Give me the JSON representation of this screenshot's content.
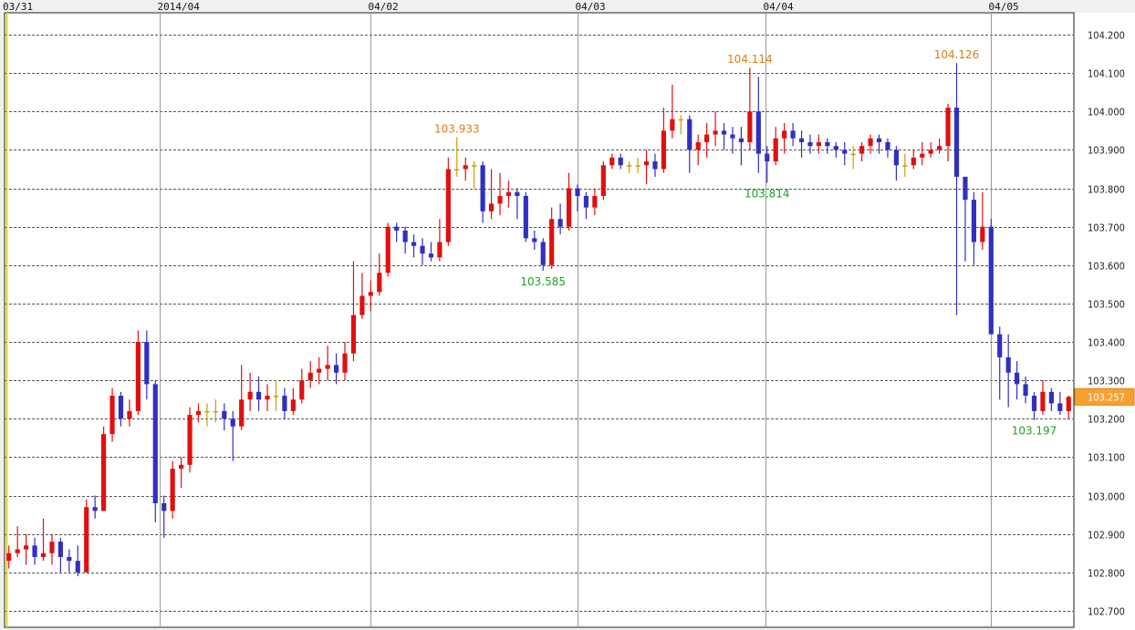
{
  "chart_data": {
    "type": "candlestick",
    "title": "",
    "xlabel": "",
    "ylabel": "",
    "ylim": [
      102.65,
      104.26
    ],
    "y_ticks": [
      "102.700",
      "102.800",
      "102.900",
      "103.000",
      "103.100",
      "103.200",
      "103.300",
      "103.400",
      "103.500",
      "103.600",
      "103.700",
      "103.800",
      "103.900",
      "104.000",
      "104.100",
      "104.200"
    ],
    "grid": true,
    "colors": {
      "up": "#e01010",
      "down": "#3030c0",
      "flat": "#c8a000",
      "high_label": "#e07a10",
      "low_label": "#22a022",
      "current_price_bg": "#f7a030",
      "grid": "#555555",
      "day_line": "#999999"
    },
    "date_markers": [
      {
        "label": "03/31",
        "at_index": 0
      },
      {
        "label": "2014/04",
        "at_index": 18
      },
      {
        "label": "04/02",
        "at_index": 42.5
      },
      {
        "label": "04/03",
        "at_index": 66.5
      },
      {
        "label": "04/04",
        "at_index": 88.3
      },
      {
        "label": "04/05",
        "at_index": 114.5
      }
    ],
    "ohlc": [
      [
        102.83,
        102.87,
        102.81,
        102.85
      ],
      [
        102.85,
        102.92,
        102.84,
        102.86
      ],
      [
        102.86,
        102.9,
        102.82,
        102.87
      ],
      [
        102.87,
        102.89,
        102.82,
        102.84
      ],
      [
        102.84,
        102.94,
        102.83,
        102.85
      ],
      [
        102.85,
        102.9,
        102.82,
        102.88
      ],
      [
        102.88,
        102.89,
        102.8,
        102.84
      ],
      [
        102.84,
        102.86,
        102.8,
        102.83
      ],
      [
        102.83,
        102.87,
        102.79,
        102.8
      ],
      [
        102.8,
        102.99,
        102.8,
        102.97
      ],
      [
        102.97,
        103.0,
        102.94,
        102.96
      ],
      [
        102.96,
        103.18,
        102.96,
        103.16
      ],
      [
        103.16,
        103.28,
        103.14,
        103.26
      ],
      [
        103.26,
        103.27,
        103.18,
        103.2
      ],
      [
        103.2,
        103.25,
        103.18,
        103.22
      ],
      [
        103.22,
        103.43,
        103.21,
        103.4
      ],
      [
        103.4,
        103.43,
        103.25,
        103.29
      ],
      [
        103.29,
        103.3,
        102.93,
        102.98
      ],
      [
        102.98,
        103.0,
        102.89,
        102.96
      ],
      [
        102.96,
        103.09,
        102.94,
        103.07
      ],
      [
        103.07,
        103.1,
        103.02,
        103.08
      ],
      [
        103.08,
        103.23,
        103.06,
        103.21
      ],
      [
        103.21,
        103.24,
        103.19,
        103.22
      ],
      [
        103.22,
        103.24,
        103.18,
        103.22
      ],
      [
        103.22,
        103.25,
        103.19,
        103.22
      ],
      [
        103.22,
        103.24,
        103.17,
        103.2
      ],
      [
        103.2,
        103.22,
        103.09,
        103.18
      ],
      [
        103.18,
        103.34,
        103.17,
        103.25
      ],
      [
        103.25,
        103.32,
        103.22,
        103.27
      ],
      [
        103.27,
        103.31,
        103.22,
        103.25
      ],
      [
        103.25,
        103.29,
        103.22,
        103.26
      ],
      [
        103.26,
        103.3,
        103.22,
        103.26
      ],
      [
        103.26,
        103.28,
        103.2,
        103.22
      ],
      [
        103.22,
        103.28,
        103.21,
        103.25
      ],
      [
        103.25,
        103.33,
        103.24,
        103.3
      ],
      [
        103.3,
        103.35,
        103.28,
        103.32
      ],
      [
        103.32,
        103.36,
        103.29,
        103.33
      ],
      [
        103.33,
        103.39,
        103.3,
        103.34
      ],
      [
        103.34,
        103.37,
        103.29,
        103.32
      ],
      [
        103.32,
        103.4,
        103.3,
        103.37
      ],
      [
        103.37,
        103.61,
        103.35,
        103.47
      ],
      [
        103.47,
        103.58,
        103.46,
        103.52
      ],
      [
        103.52,
        103.56,
        103.48,
        103.53
      ],
      [
        103.53,
        103.63,
        103.52,
        103.58
      ],
      [
        103.58,
        103.71,
        103.57,
        103.7
      ],
      [
        103.7,
        103.71,
        103.66,
        103.69
      ],
      [
        103.69,
        103.7,
        103.63,
        103.66
      ],
      [
        103.66,
        103.68,
        103.62,
        103.65
      ],
      [
        103.65,
        103.67,
        103.6,
        103.63
      ],
      [
        103.63,
        103.66,
        103.61,
        103.62
      ],
      [
        103.62,
        103.72,
        103.61,
        103.66
      ],
      [
        103.66,
        103.88,
        103.65,
        103.85
      ],
      [
        103.85,
        103.933,
        103.83,
        103.85
      ],
      [
        103.85,
        103.88,
        103.82,
        103.86
      ],
      [
        103.86,
        103.87,
        103.8,
        103.86
      ],
      [
        103.86,
        103.87,
        103.71,
        103.74
      ],
      [
        103.74,
        103.85,
        103.72,
        103.76
      ],
      [
        103.76,
        103.84,
        103.73,
        103.78
      ],
      [
        103.78,
        103.82,
        103.75,
        103.79
      ],
      [
        103.79,
        103.8,
        103.72,
        103.78
      ],
      [
        103.78,
        103.79,
        103.66,
        103.67
      ],
      [
        103.67,
        103.69,
        103.64,
        103.66
      ],
      [
        103.66,
        103.67,
        103.585,
        103.6
      ],
      [
        103.6,
        103.75,
        103.59,
        103.72
      ],
      [
        103.72,
        103.76,
        103.68,
        103.7
      ],
      [
        103.7,
        103.84,
        103.69,
        103.8
      ],
      [
        103.8,
        103.81,
        103.74,
        103.78
      ],
      [
        103.78,
        103.79,
        103.72,
        103.75
      ],
      [
        103.75,
        103.8,
        103.73,
        103.78
      ],
      [
        103.78,
        103.87,
        103.77,
        103.86
      ],
      [
        103.86,
        103.89,
        103.85,
        103.88
      ],
      [
        103.88,
        103.89,
        103.85,
        103.86
      ],
      [
        103.86,
        103.87,
        103.84,
        103.86
      ],
      [
        103.86,
        103.88,
        103.84,
        103.86
      ],
      [
        103.86,
        103.9,
        103.81,
        103.87
      ],
      [
        103.87,
        103.89,
        103.83,
        103.85
      ],
      [
        103.85,
        104.01,
        103.84,
        103.95
      ],
      [
        103.95,
        104.07,
        103.93,
        103.98
      ],
      [
        103.98,
        103.99,
        103.94,
        103.98
      ],
      [
        103.98,
        103.99,
        103.84,
        103.9
      ],
      [
        103.9,
        103.94,
        103.86,
        103.92
      ],
      [
        103.92,
        103.97,
        103.88,
        103.94
      ],
      [
        103.94,
        104.0,
        103.91,
        103.95
      ],
      [
        103.95,
        103.97,
        103.9,
        103.94
      ],
      [
        103.94,
        103.96,
        103.89,
        103.93
      ],
      [
        103.93,
        103.96,
        103.86,
        103.92
      ],
      [
        103.92,
        104.114,
        103.9,
        104.0
      ],
      [
        104.0,
        104.09,
        103.84,
        103.89
      ],
      [
        103.89,
        103.91,
        103.814,
        103.87
      ],
      [
        103.87,
        103.96,
        103.86,
        103.93
      ],
      [
        103.93,
        103.97,
        103.89,
        103.95
      ],
      [
        103.95,
        103.97,
        103.91,
        103.93
      ],
      [
        103.93,
        103.95,
        103.88,
        103.92
      ],
      [
        103.92,
        103.94,
        103.89,
        103.91
      ],
      [
        103.91,
        103.94,
        103.89,
        103.92
      ],
      [
        103.92,
        103.93,
        103.89,
        103.91
      ],
      [
        103.91,
        103.92,
        103.88,
        103.9
      ],
      [
        103.9,
        103.92,
        103.86,
        103.89
      ],
      [
        103.89,
        103.91,
        103.85,
        103.89
      ],
      [
        103.89,
        103.92,
        103.87,
        103.91
      ],
      [
        103.91,
        103.94,
        103.89,
        103.93
      ],
      [
        103.93,
        103.94,
        103.89,
        103.92
      ],
      [
        103.92,
        103.93,
        103.88,
        103.9
      ],
      [
        103.9,
        103.91,
        103.82,
        103.86
      ],
      [
        103.86,
        103.89,
        103.83,
        103.86
      ],
      [
        103.86,
        103.9,
        103.85,
        103.88
      ],
      [
        103.88,
        103.92,
        103.86,
        103.89
      ],
      [
        103.89,
        103.92,
        103.88,
        103.9
      ],
      [
        103.9,
        103.93,
        103.89,
        103.91
      ],
      [
        103.91,
        104.02,
        103.87,
        104.01
      ],
      [
        104.01,
        104.126,
        103.47,
        103.83
      ],
      [
        103.83,
        103.83,
        103.61,
        103.77
      ],
      [
        103.77,
        103.79,
        103.6,
        103.66
      ],
      [
        103.66,
        103.79,
        103.64,
        103.7
      ],
      [
        103.7,
        103.72,
        103.42,
        103.42
      ],
      [
        103.42,
        103.44,
        103.25,
        103.36
      ],
      [
        103.36,
        103.42,
        103.23,
        103.32
      ],
      [
        103.32,
        103.35,
        103.25,
        103.29
      ],
      [
        103.29,
        103.31,
        103.24,
        103.26
      ],
      [
        103.26,
        103.27,
        103.197,
        103.22
      ],
      [
        103.22,
        103.3,
        103.21,
        103.27
      ],
      [
        103.27,
        103.28,
        103.22,
        103.24
      ],
      [
        103.24,
        103.27,
        103.21,
        103.22
      ],
      [
        103.22,
        103.26,
        103.2,
        103.257
      ]
    ],
    "annotations": [
      {
        "text": "103.933",
        "value": 103.933,
        "index": 52,
        "kind": "high"
      },
      {
        "text": "103.585",
        "value": 103.585,
        "index": 62,
        "kind": "low"
      },
      {
        "text": "104.114",
        "value": 104.114,
        "index": 86,
        "kind": "high"
      },
      {
        "text": "103.814",
        "value": 103.814,
        "index": 88,
        "kind": "low"
      },
      {
        "text": "104.126",
        "value": 104.126,
        "index": 110,
        "kind": "high"
      },
      {
        "text": "103.197",
        "value": 103.197,
        "index": 119,
        "kind": "low"
      }
    ],
    "current_price": {
      "text": "103.257",
      "value": 103.257
    }
  }
}
